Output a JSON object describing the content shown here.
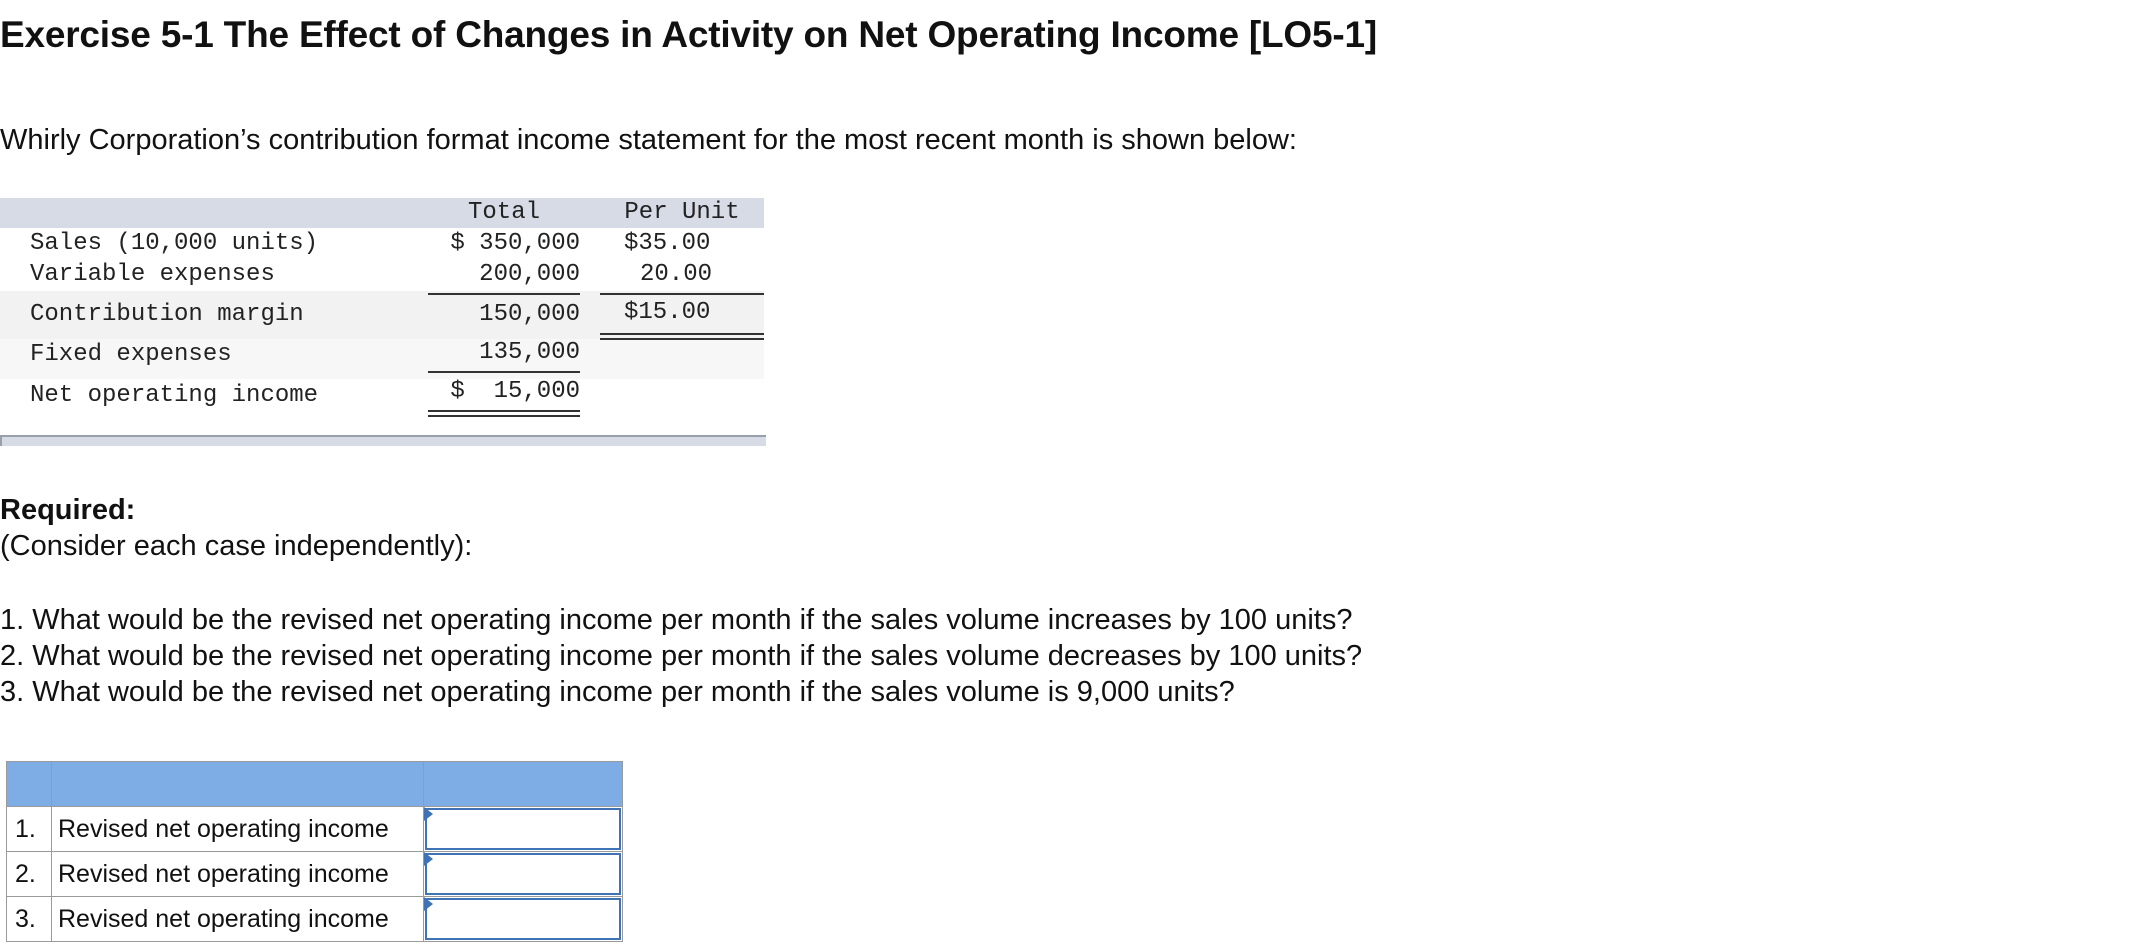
{
  "title": "Exercise 5-1 The Effect of Changes in Activity on Net Operating Income [LO5-1]",
  "intro": "Whirly Corporation’s contribution format income statement for the most recent month is shown below:",
  "statement": {
    "headers": {
      "total": "Total",
      "per_unit": "Per Unit"
    },
    "rows": [
      {
        "label": "Sales (10,000 units)",
        "total": "$ 350,000",
        "per_unit": "$35.00"
      },
      {
        "label": "Variable expenses",
        "total": "200,000",
        "per_unit": "20.00"
      },
      {
        "label": "Contribution margin",
        "total": "150,000",
        "per_unit": "$15.00"
      },
      {
        "label": "Fixed expenses",
        "total": "135,000",
        "per_unit": ""
      },
      {
        "label": "Net operating income",
        "total": "$  15,000",
        "per_unit": ""
      }
    ]
  },
  "required": {
    "heading": "Required:",
    "note": "(Consider each case independently):",
    "questions": [
      "1. What would be the revised net operating income per month if the sales volume increases by 100 units?",
      "2. What would be the revised net operating income per month if the sales volume decreases by 100 units?",
      "3. What would be the revised net operating income per month if the sales volume is 9,000 units?"
    ]
  },
  "answer_table": {
    "rows": [
      {
        "num": "1.",
        "label": "Revised net operating income",
        "value": ""
      },
      {
        "num": "2.",
        "label": "Revised net operating income",
        "value": ""
      },
      {
        "num": "3.",
        "label": "Revised net operating income",
        "value": ""
      }
    ]
  },
  "colors": {
    "header_band": "#d6dbe6",
    "answer_header": "#7eade6",
    "input_border": "#3f73b5"
  }
}
